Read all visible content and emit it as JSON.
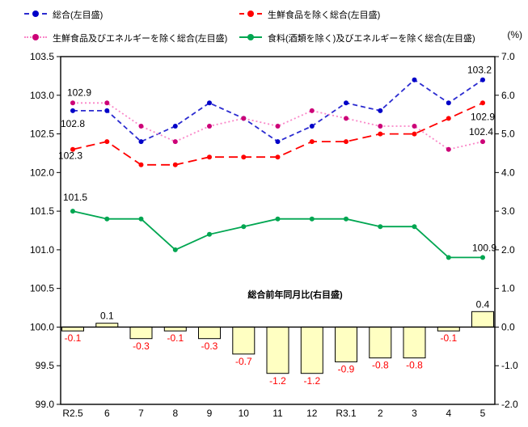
{
  "chart_data": {
    "type": "line",
    "title": "",
    "categories": [
      "R2.5",
      "6",
      "7",
      "8",
      "9",
      "10",
      "11",
      "12",
      "R3.1",
      "2",
      "3",
      "4",
      "5"
    ],
    "left_axis": {
      "min": 99.0,
      "max": 103.5,
      "step": 0.5,
      "ticks": [
        "103.5",
        "103.0",
        "102.5",
        "102.0",
        "101.5",
        "101.0",
        "100.5",
        "100.0",
        "99.5",
        "99.0"
      ]
    },
    "right_axis": {
      "min": -2.0,
      "max": 7.0,
      "step": 1.0,
      "unit": "(%)",
      "ticks": [
        "7.0",
        "6.0",
        "5.0",
        "4.0",
        "3.0",
        "2.0",
        "1.0",
        "0.0",
        "-1.0",
        "-2.0"
      ]
    },
    "series": [
      {
        "name": "総合(左目盛)",
        "color": "#0000C8",
        "line_color": "#2B2BD0",
        "style": "dashed",
        "values": [
          102.8,
          102.8,
          102.4,
          102.6,
          102.9,
          102.7,
          102.4,
          102.6,
          102.9,
          102.8,
          103.2,
          102.9,
          103.2
        ],
        "start_label": {
          "text": "102.8",
          "dx": -15,
          "dy": 20
        },
        "end_label": {
          "text": "103.2",
          "dx": -19,
          "dy": -8
        }
      },
      {
        "name": "生鮮食品を除く総合(左目盛)",
        "color": "#FF0000",
        "line_color": "#FF0000",
        "style": "long-dash",
        "values": [
          102.3,
          102.4,
          102.1,
          102.1,
          102.2,
          102.2,
          102.2,
          102.4,
          102.4,
          102.5,
          102.5,
          102.7,
          102.9
        ],
        "start_label": {
          "text": "102.3",
          "dx": -18,
          "dy": 12
        },
        "end_label": {
          "text": "102.9",
          "dx": -15,
          "dy": 21
        }
      },
      {
        "name": "生鮮食品及びエネルギーを除く総合(左目盛)",
        "color": "#CC0077",
        "line_color": "#FA86C8",
        "style": "dotted",
        "values": [
          102.9,
          102.9,
          102.6,
          102.4,
          102.6,
          102.7,
          102.6,
          102.8,
          102.7,
          102.6,
          102.6,
          102.3,
          102.4
        ],
        "start_label": {
          "text": "102.9",
          "dx": -7,
          "dy": -9
        },
        "end_label": {
          "text": "102.4",
          "dx": -17,
          "dy": -8
        }
      },
      {
        "name": "食料(酒類を除く)及びエネルギーを除く総合(左目盛)",
        "color": "#00A651",
        "line_color": "#00A651",
        "style": "solid",
        "values": [
          101.5,
          101.4,
          101.4,
          101.0,
          101.2,
          101.3,
          101.4,
          101.4,
          101.4,
          101.3,
          101.3,
          100.9,
          100.9
        ],
        "start_label": {
          "text": "101.5",
          "dx": -12,
          "dy": -13
        },
        "end_label": {
          "text": "100.9",
          "dx": -13,
          "dy": -8
        }
      }
    ],
    "bar_series": {
      "name": "総合前年同月比(右目盛)",
      "values": [
        -0.1,
        0.1,
        -0.3,
        -0.1,
        -0.3,
        -0.7,
        -1.2,
        -1.2,
        -0.9,
        -0.8,
        -0.8,
        -0.1,
        0.4
      ],
      "fill": "#FFFFC2",
      "stroke": "#000000",
      "negative_label_color": "#FF0000",
      "positive_label_color": "#000000"
    },
    "annotation": "総合前年同月比(右目盛)",
    "legend_position": "top",
    "grid": false
  }
}
